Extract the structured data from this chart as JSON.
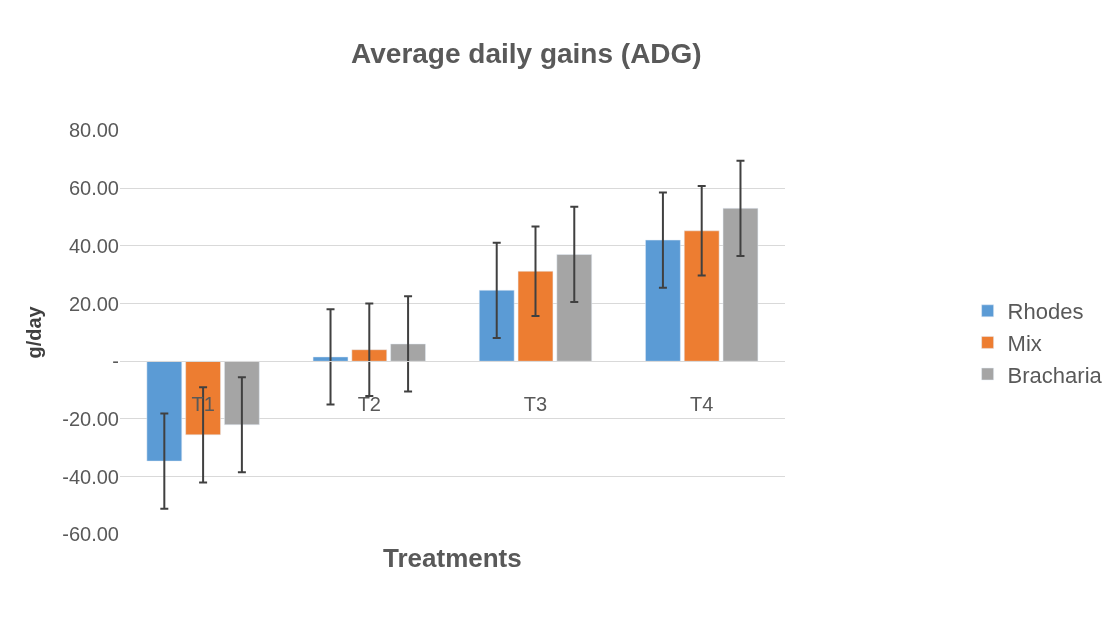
{
  "chart_data": {
    "type": "bar",
    "title": "Average daily gains (ADG)",
    "xlabel": "Treatments",
    "ylabel": "g/day",
    "categories": [
      "T1",
      "T2",
      "T3",
      "T4"
    ],
    "series": [
      {
        "name": "Rhodes",
        "color": "#5b9bd5",
        "values": [
          -34.6,
          1.5,
          24.6,
          42
        ],
        "errors": [
          16.5,
          16.5,
          16.5,
          16.5
        ]
      },
      {
        "name": "Mix",
        "color": "#ed7d31",
        "values": [
          -25.5,
          4,
          31.2,
          45.2
        ],
        "errors": [
          16.5,
          16,
          15.5,
          15.5
        ]
      },
      {
        "name": "Bracharia",
        "color": "#a5a5a5",
        "values": [
          -22,
          6,
          37,
          53
        ],
        "errors": [
          16.5,
          16.5,
          16.5,
          16.5
        ]
      }
    ],
    "ylim": [
      -60,
      80
    ],
    "yticks": [
      {
        "value": -60,
        "label": "-60.00"
      },
      {
        "value": -40,
        "label": "-40.00"
      },
      {
        "value": -20,
        "label": "-20.00"
      },
      {
        "value": 0,
        "label": "-"
      },
      {
        "value": 20,
        "label": "20.00"
      },
      {
        "value": 40,
        "label": "40.00"
      },
      {
        "value": 60,
        "label": "60.00"
      },
      {
        "value": 80,
        "label": "80.00"
      }
    ],
    "grid": "y",
    "legend": "right"
  }
}
